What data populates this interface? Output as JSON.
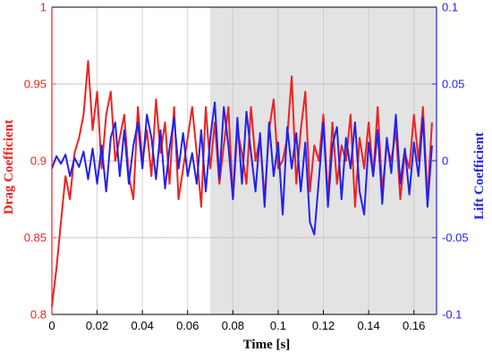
{
  "chart_data": {
    "type": "line",
    "title": "",
    "xlabel": "Time [s]",
    "ylabel_left": "Drag Coefficient",
    "ylabel_right": "Lift Coefficient",
    "xlim": [
      0,
      0.17
    ],
    "ylim_left": [
      0.8,
      1.0
    ],
    "ylim_right": [
      -0.1,
      0.1
    ],
    "x_ticks": [
      "0",
      "0.02",
      "0.04",
      "0.06",
      "0.08",
      "0.1",
      "0.12",
      "0.14",
      "0.16"
    ],
    "y_left_ticks": [
      "0.8",
      "0.85",
      "0.9",
      "0.95",
      "1"
    ],
    "y_right_ticks": [
      "-0.1",
      "-0.05",
      "0",
      "0.05",
      "0.1"
    ],
    "grid": true,
    "shaded_region": {
      "x_start": 0.07,
      "x_end": 0.17,
      "color": "#e3e3e3"
    },
    "series": [
      {
        "axis": "left",
        "color": "#ee2222",
        "x": [
          0,
          0.002,
          0.004,
          0.006,
          0.008,
          0.01,
          0.012,
          0.014,
          0.016,
          0.018,
          0.02,
          0.022,
          0.024,
          0.026,
          0.028,
          0.03,
          0.032,
          0.034,
          0.036,
          0.038,
          0.04,
          0.042,
          0.044,
          0.046,
          0.048,
          0.05,
          0.052,
          0.054,
          0.056,
          0.058,
          0.06,
          0.062,
          0.064,
          0.066,
          0.068,
          0.07,
          0.072,
          0.074,
          0.076,
          0.078,
          0.08,
          0.082,
          0.084,
          0.086,
          0.088,
          0.09,
          0.092,
          0.094,
          0.096,
          0.098,
          0.1,
          0.102,
          0.104,
          0.106,
          0.108,
          0.11,
          0.112,
          0.114,
          0.116,
          0.118,
          0.12,
          0.122,
          0.124,
          0.126,
          0.128,
          0.13,
          0.132,
          0.134,
          0.136,
          0.138,
          0.14,
          0.142,
          0.144,
          0.146,
          0.148,
          0.15,
          0.152,
          0.154,
          0.156,
          0.158,
          0.16,
          0.162,
          0.164,
          0.166,
          0.168
        ],
        "values": [
          0.805,
          0.83,
          0.86,
          0.89,
          0.875,
          0.905,
          0.915,
          0.93,
          0.965,
          0.92,
          0.945,
          0.895,
          0.93,
          0.945,
          0.9,
          0.915,
          0.93,
          0.89,
          0.875,
          0.935,
          0.9,
          0.92,
          0.89,
          0.94,
          0.905,
          0.925,
          0.885,
          0.935,
          0.875,
          0.895,
          0.915,
          0.935,
          0.905,
          0.87,
          0.935,
          0.895,
          0.925,
          0.885,
          0.91,
          0.935,
          0.875,
          0.92,
          0.905,
          0.885,
          0.935,
          0.9,
          0.915,
          0.875,
          0.92,
          0.94,
          0.895,
          0.9,
          0.915,
          0.955,
          0.885,
          0.92,
          0.945,
          0.88,
          0.91,
          0.9,
          0.93,
          0.875,
          0.925,
          0.885,
          0.91,
          0.9,
          0.93,
          0.87,
          0.915,
          0.895,
          0.925,
          0.89,
          0.935,
          0.88,
          0.91,
          0.9,
          0.92,
          0.875,
          0.905,
          0.895,
          0.93,
          0.9,
          0.935,
          0.875,
          0.925
        ]
      },
      {
        "axis": "right",
        "color": "#2222ee",
        "x": [
          0,
          0.002,
          0.004,
          0.006,
          0.008,
          0.01,
          0.012,
          0.014,
          0.016,
          0.018,
          0.02,
          0.022,
          0.024,
          0.026,
          0.028,
          0.03,
          0.032,
          0.034,
          0.036,
          0.038,
          0.04,
          0.042,
          0.044,
          0.046,
          0.048,
          0.05,
          0.052,
          0.054,
          0.056,
          0.058,
          0.06,
          0.062,
          0.064,
          0.066,
          0.068,
          0.07,
          0.072,
          0.074,
          0.076,
          0.078,
          0.08,
          0.082,
          0.084,
          0.086,
          0.088,
          0.09,
          0.092,
          0.094,
          0.096,
          0.098,
          0.1,
          0.102,
          0.104,
          0.106,
          0.108,
          0.11,
          0.112,
          0.114,
          0.116,
          0.118,
          0.12,
          0.122,
          0.124,
          0.126,
          0.128,
          0.13,
          0.132,
          0.134,
          0.136,
          0.138,
          0.14,
          0.142,
          0.144,
          0.146,
          0.148,
          0.15,
          0.152,
          0.154,
          0.156,
          0.158,
          0.16,
          0.162,
          0.164,
          0.166,
          0.168
        ],
        "values": [
          -0.005,
          0.003,
          -0.002,
          0.004,
          -0.01,
          0.002,
          -0.004,
          0.006,
          -0.012,
          0.008,
          -0.015,
          0.01,
          -0.02,
          0.015,
          0.025,
          -0.01,
          0.02,
          -0.015,
          0.01,
          0.025,
          -0.005,
          0.03,
          0.015,
          -0.012,
          0.02,
          -0.018,
          0.008,
          0.028,
          -0.005,
          0.018,
          -0.01,
          0.005,
          -0.015,
          0.02,
          -0.02,
          0.015,
          0.038,
          -0.012,
          0.035,
          0.01,
          -0.025,
          0.028,
          -0.015,
          0.032,
          0.005,
          -0.02,
          0.018,
          -0.03,
          0.025,
          -0.01,
          0.012,
          -0.035,
          0.022,
          -0.005,
          0.018,
          -0.02,
          0.012,
          -0.04,
          -0.048,
          -0.012,
          0.025,
          -0.03,
          0.01,
          0.022,
          -0.025,
          0.015,
          -0.005,
          0.025,
          -0.02,
          -0.035,
          0.012,
          -0.01,
          0.02,
          -0.028,
          0.015,
          -0.008,
          0.03,
          -0.015,
          0.008,
          -0.022,
          0.012,
          -0.01,
          0.028,
          -0.03,
          0.01
        ]
      }
    ]
  }
}
